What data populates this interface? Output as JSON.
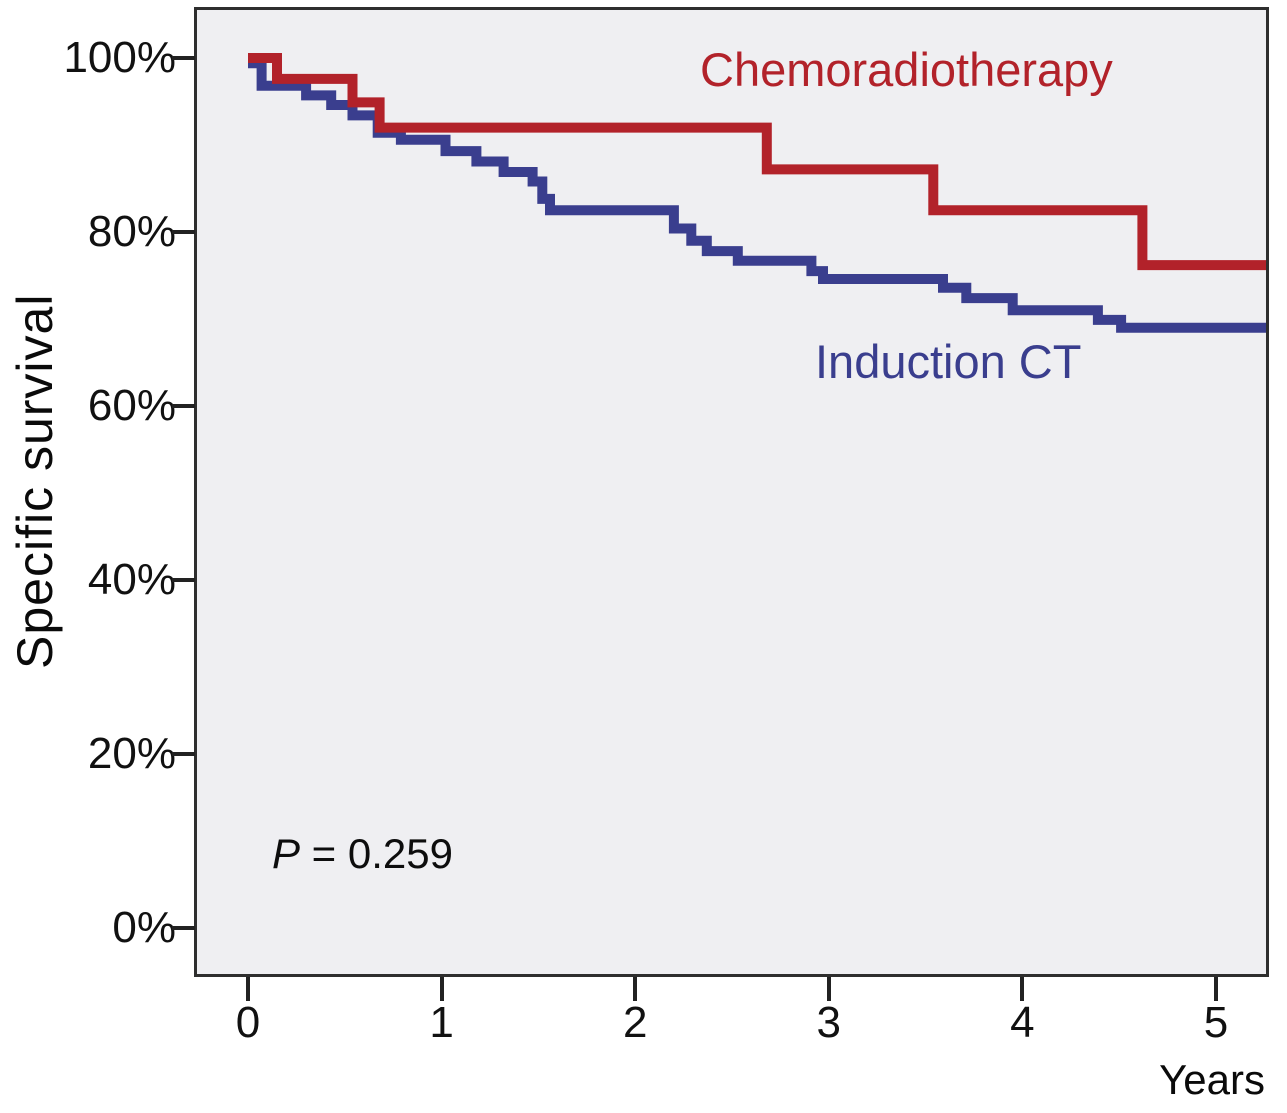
{
  "figure": {
    "background": "#ffffff",
    "plot_background": "#efeff2",
    "border_color": "#2e2e2e",
    "tick_color": "#222222",
    "text_color": "#111111"
  },
  "chart_data": {
    "type": "line",
    "subtype": "kaplan-meier-step-survival",
    "title": "",
    "xlabel": "Years",
    "ylabel": "Specific survival",
    "xlim": [
      0,
      5.29
    ],
    "ylim": [
      0,
      100
    ],
    "x_ticks": [
      0,
      1,
      2,
      3,
      4,
      5
    ],
    "y_ticks": [
      0,
      20,
      40,
      60,
      80,
      100
    ],
    "y_tick_suffix": "%",
    "grid": false,
    "legend_position": "inline-annotations",
    "series": [
      {
        "name": "Chemoradiotherapy",
        "color": "#b2222a",
        "steps": [
          [
            0,
            100
          ],
          [
            0.15,
            97.6
          ],
          [
            0.54,
            94.9
          ],
          [
            0.68,
            92.0
          ],
          [
            2.68,
            87.2
          ],
          [
            3.54,
            82.5
          ],
          [
            4.62,
            76.2
          ]
        ],
        "end_t": 5.29,
        "final_value": 76.2
      },
      {
        "name": "Induction CT",
        "color": "#3a3e8e",
        "steps": [
          [
            0,
            99.4
          ],
          [
            0.07,
            96.8
          ],
          [
            0.3,
            95.7
          ],
          [
            0.43,
            94.6
          ],
          [
            0.54,
            93.4
          ],
          [
            0.67,
            91.4
          ],
          [
            0.79,
            90.6
          ],
          [
            1.02,
            89.3
          ],
          [
            1.18,
            88.1
          ],
          [
            1.32,
            86.9
          ],
          [
            1.47,
            85.8
          ],
          [
            1.52,
            83.8
          ],
          [
            1.56,
            82.5
          ],
          [
            2.2,
            80.4
          ],
          [
            2.29,
            79.0
          ],
          [
            2.37,
            77.8
          ],
          [
            2.53,
            76.7
          ],
          [
            2.91,
            75.5
          ],
          [
            2.97,
            74.6
          ],
          [
            3.59,
            73.6
          ],
          [
            3.71,
            72.4
          ],
          [
            3.95,
            71.0
          ],
          [
            4.39,
            69.9
          ],
          [
            4.51,
            69.0
          ]
        ],
        "end_t": 5.29,
        "final_value": 69.0
      }
    ],
    "annotations": [
      {
        "text": "P = 0.259",
        "italic_first_char": true
      }
    ]
  }
}
